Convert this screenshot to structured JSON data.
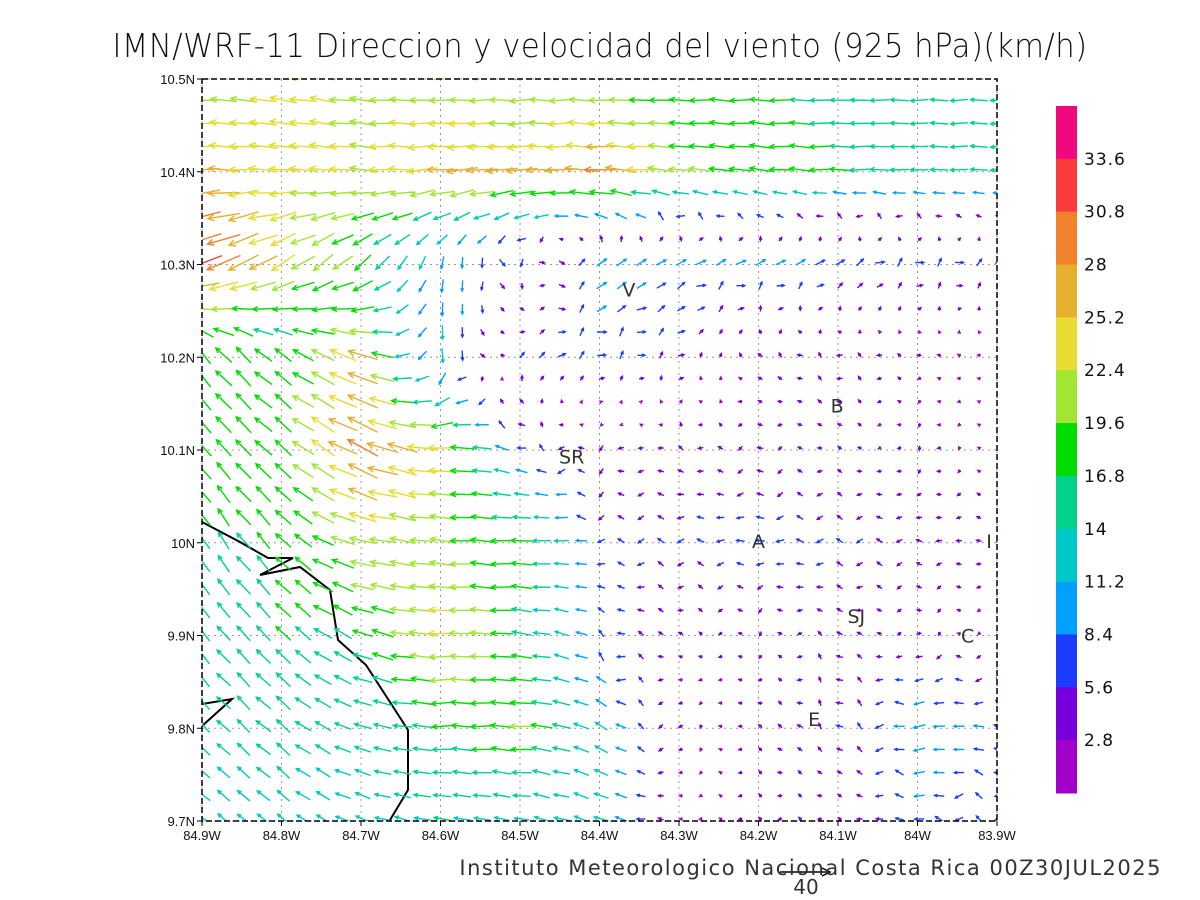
{
  "title": "IMN/WRF-11 Direccion y velocidad del viento (925 hPa)(km/h)",
  "footer": "Instituto Meteorologico Nacional Costa Rica 00Z30JUL2025",
  "reference_vector": {
    "value": 40,
    "label": "40"
  },
  "chart_data": {
    "type": "vector-field",
    "units": "km/h",
    "level": "925 hPa",
    "lon_range": [
      -84.9,
      -83.9
    ],
    "lat_range": [
      9.7,
      10.5
    ],
    "x_ticks": [
      "84.9W",
      "84.8W",
      "84.7W",
      "84.6W",
      "84.5W",
      "84.4W",
      "84.3W",
      "84.2W",
      "84.1W",
      "84W",
      "83.9W"
    ],
    "y_ticks": [
      "10.5N",
      "10.4N",
      "10.3N",
      "10.2N",
      "10.1N",
      "10N",
      "9.9N",
      "9.8N",
      "9.7N"
    ],
    "grid_lons": [
      -84.9,
      -84.8,
      -84.7,
      -84.6,
      -84.5,
      -84.4,
      -84.3,
      -84.2,
      -84.1,
      -84.0,
      -83.9
    ],
    "grid_lats": [
      10.5,
      10.4,
      10.3,
      10.2,
      10.1,
      10.0,
      9.9,
      9.8,
      9.7
    ],
    "uv": [
      [
        [
          -20,
          2
        ],
        [
          -22,
          4
        ],
        [
          -22,
          2
        ],
        [
          -20,
          0
        ],
        [
          -18,
          0
        ],
        [
          -18,
          0
        ],
        [
          -18,
          0
        ],
        [
          -17,
          0
        ],
        [
          -16,
          0
        ],
        [
          -15,
          0
        ],
        [
          -14,
          0
        ]
      ],
      [
        [
          -26,
          0
        ],
        [
          -24,
          2
        ],
        [
          -22,
          2
        ],
        [
          -26,
          -2
        ],
        [
          -26,
          -2
        ],
        [
          -28,
          2
        ],
        [
          -20,
          2
        ],
        [
          -18,
          2
        ],
        [
          -17,
          0
        ],
        [
          -15,
          0
        ],
        [
          -14,
          0
        ]
      ],
      [
        [
          -30,
          -12
        ],
        [
          -20,
          -12
        ],
        [
          -14,
          -12
        ],
        [
          -2,
          -10
        ],
        [
          2,
          -6
        ],
        [
          8,
          6
        ],
        [
          8,
          4
        ],
        [
          8,
          4
        ],
        [
          7,
          4
        ],
        [
          6,
          4
        ],
        [
          6,
          3
        ]
      ],
      [
        [
          -12,
          14
        ],
        [
          -14,
          10
        ],
        [
          -24,
          8
        ],
        [
          0,
          -12
        ],
        [
          4,
          4
        ],
        [
          6,
          4
        ],
        [
          4,
          3
        ],
        [
          -3,
          3
        ],
        [
          -4,
          2
        ],
        [
          -3,
          1
        ],
        [
          -2,
          1
        ]
      ],
      [
        [
          -12,
          14
        ],
        [
          -14,
          12
        ],
        [
          -26,
          12
        ],
        [
          -24,
          0
        ],
        [
          -6,
          4
        ],
        [
          -4,
          -3
        ],
        [
          -4,
          2
        ],
        [
          -4,
          -2
        ],
        [
          -3,
          2
        ],
        [
          -2,
          -3
        ],
        [
          -2,
          1
        ]
      ],
      [
        [
          -9,
          14
        ],
        [
          -12,
          12
        ],
        [
          -22,
          4
        ],
        [
          -20,
          2
        ],
        [
          -18,
          0
        ],
        [
          -6,
          0
        ],
        [
          -6,
          0
        ],
        [
          -7,
          0
        ],
        [
          -6,
          0
        ],
        [
          -5,
          0
        ],
        [
          -4,
          0
        ]
      ],
      [
        [
          -10,
          12
        ],
        [
          -12,
          12
        ],
        [
          -16,
          6
        ],
        [
          -24,
          0
        ],
        [
          -16,
          2
        ],
        [
          -6,
          3
        ],
        [
          -3,
          2
        ],
        [
          -3,
          -2
        ],
        [
          -4,
          3
        ],
        [
          -3,
          -2
        ],
        [
          -2,
          0
        ]
      ],
      [
        [
          -10,
          10
        ],
        [
          -12,
          10
        ],
        [
          -14,
          4
        ],
        [
          -17,
          0
        ],
        [
          -20,
          1
        ],
        [
          -10,
          6
        ],
        [
          -2,
          -3
        ],
        [
          -3,
          2
        ],
        [
          -4,
          4
        ],
        [
          -10,
          -2
        ],
        [
          -8,
          2
        ]
      ],
      [
        [
          -10,
          8
        ],
        [
          -10,
          8
        ],
        [
          -12,
          4
        ],
        [
          -14,
          2
        ],
        [
          -12,
          2
        ],
        [
          -12,
          4
        ],
        [
          -2,
          0
        ],
        [
          -3,
          1
        ],
        [
          -3,
          1
        ],
        [
          -8,
          0
        ],
        [
          -6,
          2
        ]
      ]
    ],
    "colorbar": {
      "labels": [
        "33.6",
        "30.8",
        "28",
        "25.2",
        "22.4",
        "19.6",
        "16.8",
        "14",
        "11.2",
        "8.4",
        "5.6",
        "2.8"
      ],
      "step": 2.8,
      "colors_top_to_bottom": [
        "#f0087f",
        "#fa3c3c",
        "#f0822d",
        "#e6af2d",
        "#e6dc32",
        "#a0e632",
        "#00dc00",
        "#00d28c",
        "#00c8c8",
        "#00a0ff",
        "#1e3cff",
        "#7800dc",
        "#a000c8"
      ]
    },
    "locations": [
      {
        "label": "V",
        "lon": -84.363,
        "lat": 10.273
      },
      {
        "label": "B",
        "lon": -84.101,
        "lat": 10.148
      },
      {
        "label": "SR",
        "lon": -84.435,
        "lat": 10.093
      },
      {
        "label": "A",
        "lon": -84.2,
        "lat": 10.002
      },
      {
        "label": "SJ",
        "lon": -84.077,
        "lat": 9.921
      },
      {
        "label": "C",
        "lon": -83.937,
        "lat": 9.9
      },
      {
        "label": "E",
        "lon": -84.13,
        "lat": 9.81
      },
      {
        "label": "I",
        "lon": -83.91,
        "lat": 10.002
      }
    ]
  }
}
